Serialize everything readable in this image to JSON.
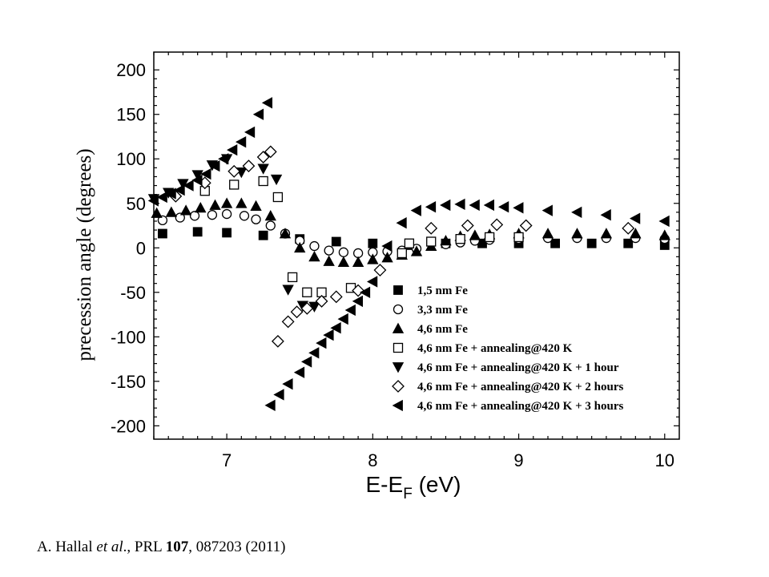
{
  "chart_data": {
    "type": "scatter",
    "xlabel": "E-E",
    "xlabel_sub": "F",
    "xlabel_unit": " (eV)",
    "ylabel": "precession angle (degrees)",
    "xlim": [
      6.5,
      10.1
    ],
    "ylim": [
      -215,
      220
    ],
    "xticks": [
      7,
      8,
      9,
      10
    ],
    "yticks": [
      200,
      150,
      100,
      50,
      0,
      -50,
      -100,
      -150,
      -200
    ],
    "grid": false,
    "legend_position": "bottom-right",
    "series": [
      {
        "name": "1,5 nm Fe",
        "marker": "square-filled",
        "points": [
          [
            6.56,
            16
          ],
          [
            6.8,
            18
          ],
          [
            7.0,
            17
          ],
          [
            7.25,
            14
          ],
          [
            7.5,
            10
          ],
          [
            7.75,
            7
          ],
          [
            8.0,
            5
          ],
          [
            8.25,
            3
          ],
          [
            8.5,
            5
          ],
          [
            8.75,
            5
          ],
          [
            9.0,
            5
          ],
          [
            9.25,
            5
          ],
          [
            9.5,
            5
          ],
          [
            9.75,
            5
          ],
          [
            10.0,
            3
          ]
        ]
      },
      {
        "name": "3,3 nm Fe",
        "marker": "circle-open",
        "points": [
          [
            6.56,
            31
          ],
          [
            6.68,
            34
          ],
          [
            6.78,
            36
          ],
          [
            6.9,
            37
          ],
          [
            7.0,
            38
          ],
          [
            7.12,
            36
          ],
          [
            7.2,
            32
          ],
          [
            7.3,
            25
          ],
          [
            7.4,
            16
          ],
          [
            7.5,
            8
          ],
          [
            7.6,
            2
          ],
          [
            7.7,
            -3
          ],
          [
            7.8,
            -5
          ],
          [
            7.9,
            -6
          ],
          [
            8.0,
            -5
          ],
          [
            8.1,
            -4
          ],
          [
            8.2,
            -3
          ],
          [
            8.3,
            -1
          ],
          [
            8.5,
            4
          ],
          [
            8.6,
            6
          ],
          [
            8.7,
            8
          ],
          [
            8.8,
            9
          ],
          [
            9.0,
            10
          ],
          [
            9.2,
            11
          ],
          [
            9.4,
            11
          ],
          [
            9.6,
            11
          ],
          [
            9.8,
            11
          ],
          [
            10.0,
            10
          ]
        ]
      },
      {
        "name": "4,6 nm Fe",
        "marker": "triangle-up-filled",
        "points": [
          [
            6.52,
            39
          ],
          [
            6.62,
            40
          ],
          [
            6.72,
            42
          ],
          [
            6.82,
            45
          ],
          [
            6.92,
            48
          ],
          [
            7.0,
            50
          ],
          [
            7.1,
            50
          ],
          [
            7.2,
            47
          ],
          [
            7.3,
            36
          ],
          [
            7.4,
            16
          ],
          [
            7.5,
            0
          ],
          [
            7.6,
            -10
          ],
          [
            7.7,
            -15
          ],
          [
            7.8,
            -16
          ],
          [
            7.9,
            -16
          ],
          [
            8.0,
            -13
          ],
          [
            8.1,
            -11
          ],
          [
            8.2,
            -8
          ],
          [
            8.3,
            -4
          ],
          [
            8.4,
            2
          ],
          [
            8.5,
            8
          ],
          [
            8.6,
            13
          ],
          [
            8.7,
            14
          ],
          [
            8.8,
            15
          ],
          [
            9.0,
            16
          ],
          [
            9.2,
            16
          ],
          [
            9.4,
            16
          ],
          [
            9.6,
            16
          ],
          [
            9.8,
            16
          ],
          [
            10.0,
            14
          ]
        ]
      },
      {
        "name": "4,6 nm Fe + annealing@420 K",
        "marker": "square-open",
        "points": [
          [
            6.85,
            64
          ],
          [
            7.05,
            71
          ],
          [
            7.25,
            75
          ],
          [
            7.35,
            57
          ],
          [
            7.45,
            -33
          ],
          [
            7.55,
            -50
          ],
          [
            7.65,
            -50
          ],
          [
            7.85,
            -45
          ],
          [
            8.2,
            -6
          ],
          [
            8.25,
            5
          ],
          [
            8.4,
            7
          ],
          [
            8.6,
            10
          ],
          [
            8.8,
            12
          ],
          [
            9.0,
            12
          ]
        ]
      },
      {
        "name": "4,6 nm Fe + annealing@420 K + 1 hour",
        "marker": "triangle-down-filled",
        "points": [
          [
            6.5,
            55
          ],
          [
            6.6,
            62
          ],
          [
            6.7,
            72
          ],
          [
            6.8,
            82
          ],
          [
            6.9,
            93
          ],
          [
            7.0,
            100
          ],
          [
            7.1,
            85
          ],
          [
            7.25,
            89
          ],
          [
            7.34,
            77
          ],
          [
            7.42,
            -47
          ],
          [
            7.52,
            -65
          ],
          [
            7.6,
            -66
          ]
        ]
      },
      {
        "name": "4,6 nm Fe + annealing@420 K + 2 hours",
        "marker": "diamond-open",
        "points": [
          [
            6.65,
            58
          ],
          [
            6.85,
            73
          ],
          [
            7.05,
            86
          ],
          [
            7.15,
            92
          ],
          [
            7.25,
            102
          ],
          [
            7.3,
            108
          ],
          [
            7.35,
            -105
          ],
          [
            7.42,
            -83
          ],
          [
            7.48,
            -72
          ],
          [
            7.55,
            -68
          ],
          [
            7.65,
            -60
          ],
          [
            7.75,
            -55
          ],
          [
            7.9,
            -48
          ],
          [
            8.05,
            -25
          ],
          [
            8.4,
            22
          ],
          [
            8.65,
            25
          ],
          [
            8.85,
            26
          ],
          [
            9.05,
            25
          ],
          [
            9.75,
            22
          ]
        ]
      },
      {
        "name": "4,6 nm Fe + annealing@420 K + 3 hours",
        "marker": "triangle-left-filled",
        "points": [
          [
            6.5,
            53
          ],
          [
            6.56,
            57
          ],
          [
            6.62,
            61
          ],
          [
            6.68,
            65
          ],
          [
            6.74,
            70
          ],
          [
            6.8,
            76
          ],
          [
            6.86,
            83
          ],
          [
            6.92,
            92
          ],
          [
            6.98,
            100
          ],
          [
            7.04,
            110
          ],
          [
            7.1,
            119
          ],
          [
            7.16,
            130
          ],
          [
            7.22,
            150
          ],
          [
            7.28,
            163
          ],
          [
            7.3,
            -177
          ],
          [
            7.36,
            -165
          ],
          [
            7.42,
            -153
          ],
          [
            7.5,
            -140
          ],
          [
            7.55,
            -128
          ],
          [
            7.6,
            -118
          ],
          [
            7.65,
            -107
          ],
          [
            7.7,
            -98
          ],
          [
            7.75,
            -90
          ],
          [
            7.8,
            -80
          ],
          [
            7.85,
            -70
          ],
          [
            7.9,
            -60
          ],
          [
            7.95,
            -50
          ],
          [
            8.0,
            -38
          ],
          [
            8.1,
            2
          ],
          [
            8.2,
            28
          ],
          [
            8.3,
            42
          ],
          [
            8.4,
            46
          ],
          [
            8.5,
            48
          ],
          [
            8.6,
            49
          ],
          [
            8.7,
            48
          ],
          [
            8.8,
            48
          ],
          [
            8.9,
            46
          ],
          [
            9.0,
            45
          ],
          [
            9.2,
            42
          ],
          [
            9.4,
            40
          ],
          [
            9.6,
            37
          ],
          [
            9.8,
            33
          ],
          [
            10.0,
            30
          ]
        ]
      }
    ]
  },
  "citation": {
    "author": "A. Hallal ",
    "etal": "et al",
    "journal": "., PRL ",
    "volume": "107",
    "rest": ", 087203 (2011)"
  }
}
